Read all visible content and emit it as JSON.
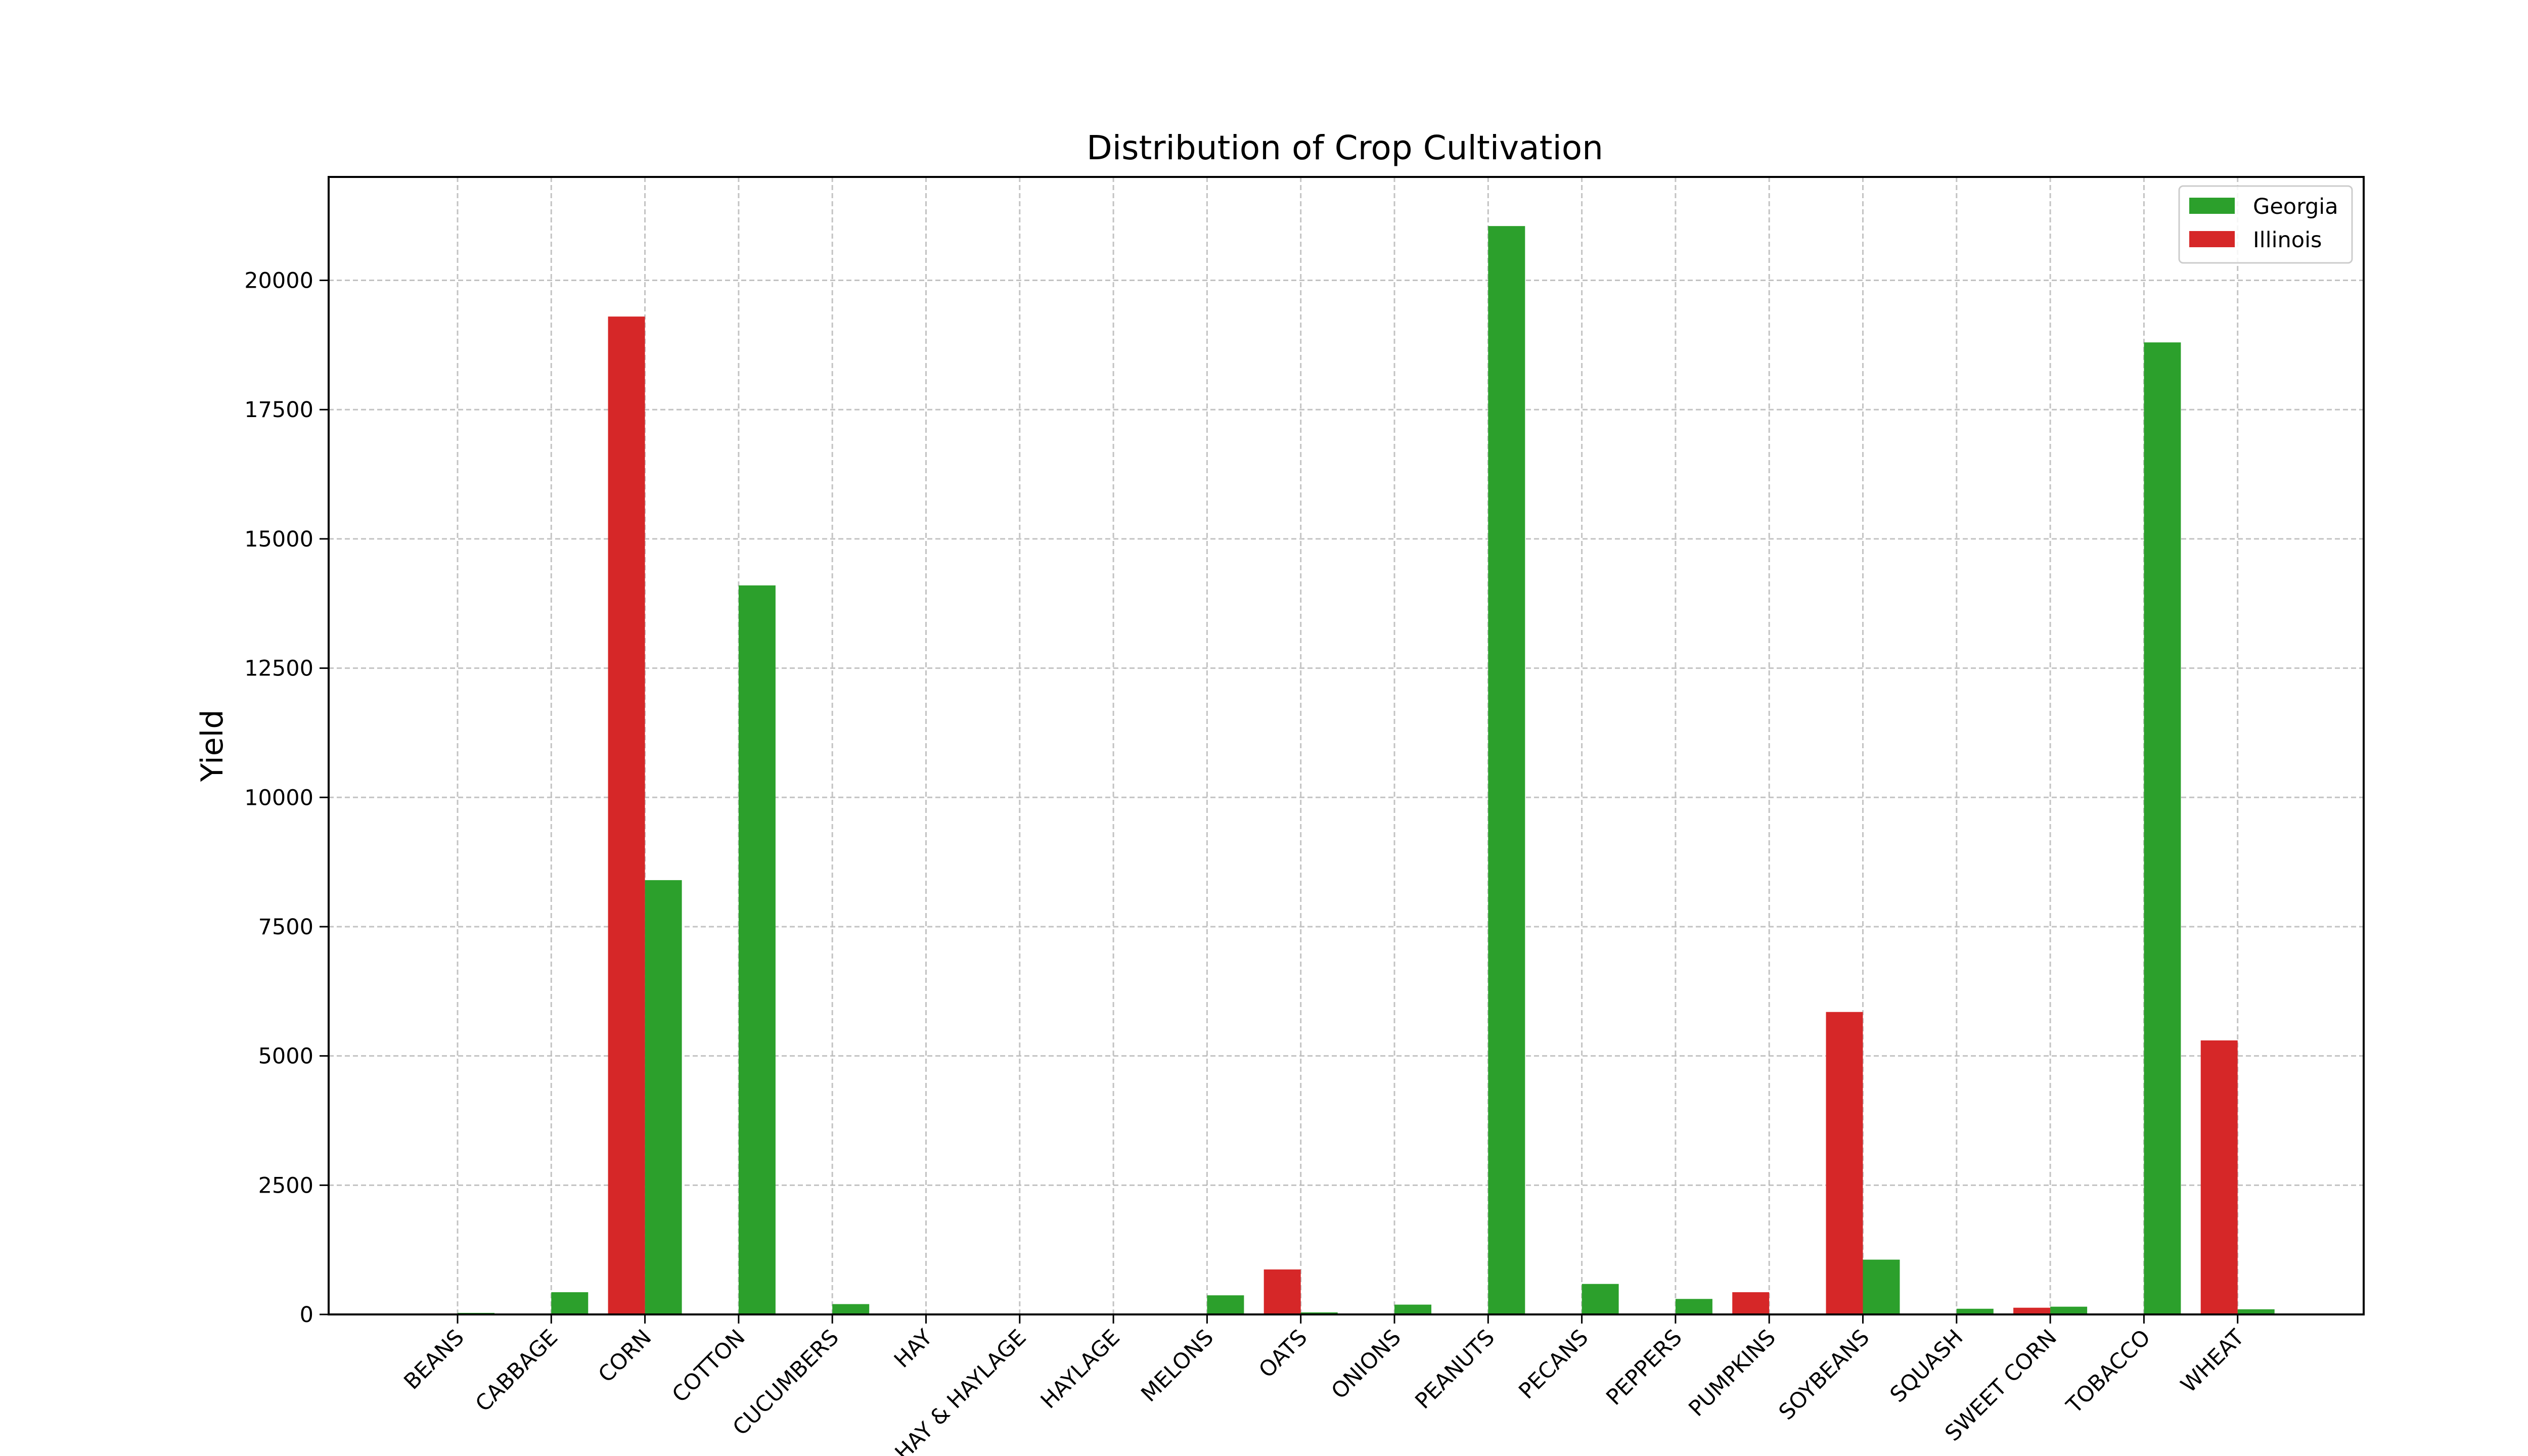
{
  "colors": {
    "georgia": "#2ca02c",
    "illinois": "#d62728"
  },
  "chart_data": {
    "type": "bar",
    "title": "Distribution of Crop Cultivation",
    "xlabel": "",
    "ylabel": "Yield",
    "ylim": [
      0,
      22000
    ],
    "yticks": [
      0,
      2500,
      5000,
      7500,
      10000,
      12500,
      15000,
      17500,
      20000
    ],
    "grid": true,
    "legend_position": "top-right",
    "categories": [
      "BEANS",
      "CABBAGE",
      "CORN",
      "COTTON",
      "CUCUMBERS",
      "HAY",
      "HAY & HAYLAGE",
      "HAYLAGE",
      "MELONS",
      "OATS",
      "ONIONS",
      "PEANUTS",
      "PECANS",
      "PEPPERS",
      "PUMPKINS",
      "SOYBEANS",
      "SQUASH",
      "SWEET CORN",
      "TOBACCO",
      "WHEAT"
    ],
    "series": [
      {
        "name": "Georgia",
        "color": "#2ca02c",
        "values": [
          30,
          430,
          8400,
          14100,
          200,
          0,
          0,
          0,
          370,
          40,
          190,
          21050,
          590,
          300,
          0,
          1060,
          110,
          150,
          18800,
          100
        ]
      },
      {
        "name": "Illinois",
        "color": "#d62728",
        "values": [
          20,
          0,
          19300,
          0,
          0,
          0,
          0,
          0,
          0,
          870,
          0,
          0,
          0,
          0,
          430,
          5850,
          0,
          130,
          0,
          5300
        ]
      }
    ]
  }
}
